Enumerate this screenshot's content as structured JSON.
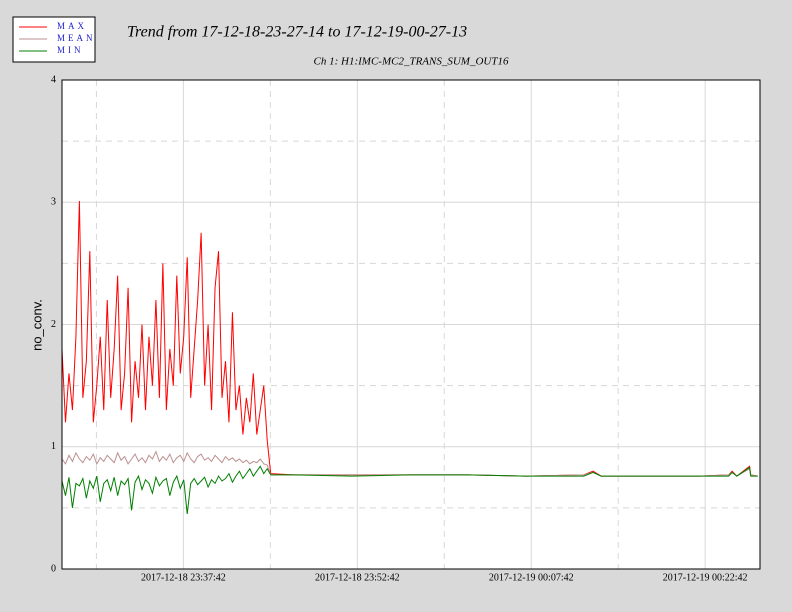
{
  "chart_data": {
    "type": "line",
    "title": "Trend from 17-12-18-23-27-14 to 17-12-19-00-27-13",
    "subtitle": "Ch 1: H1:IMC-MC2_TRANS_SUM_OUT16",
    "y_label": "no_conv.",
    "xlim": [
      0,
      60.2
    ],
    "ylim": [
      0,
      4
    ],
    "xticks": [
      {
        "value": 10.47,
        "label": "2017-12-18 23:37:42"
      },
      {
        "value": 25.47,
        "label": "2017-12-18 23:52:42"
      },
      {
        "value": 40.47,
        "label": "2017-12-19 00:07:42"
      },
      {
        "value": 55.47,
        "label": "2017-12-19 00:22:42"
      }
    ],
    "xminor": [
      2.97,
      17.97,
      32.97,
      47.97
    ],
    "yticks": [
      0,
      1,
      2,
      3,
      4
    ],
    "yminor": [
      0.5,
      1.5,
      2.5,
      3.5
    ],
    "grid": true,
    "legend": "top-left",
    "x": [
      0.0,
      0.3,
      0.6,
      0.9,
      1.2,
      1.5,
      1.8,
      2.1,
      2.4,
      2.7,
      3.0,
      3.3,
      3.6,
      3.9,
      4.2,
      4.5,
      4.8,
      5.1,
      5.4,
      5.7,
      6.0,
      6.3,
      6.6,
      6.9,
      7.2,
      7.5,
      7.8,
      8.1,
      8.4,
      8.7,
      9.0,
      9.3,
      9.6,
      9.9,
      10.2,
      10.5,
      10.8,
      11.1,
      11.4,
      11.7,
      12.0,
      12.3,
      12.6,
      12.9,
      13.2,
      13.5,
      13.8,
      14.1,
      14.4,
      14.7,
      15.0,
      15.3,
      15.6,
      15.9,
      16.2,
      16.5,
      16.8,
      17.1,
      17.4,
      17.7,
      18,
      20,
      25,
      30,
      35,
      40,
      45,
      45.8,
      46.5,
      50,
      55,
      57.5,
      57.8,
      58.2,
      59.3,
      59.4,
      60
    ],
    "series": [
      {
        "name": "MAX",
        "color": "#ff0000",
        "values": [
          1.8,
          1.2,
          1.6,
          1.3,
          1.9,
          3.01,
          1.4,
          1.7,
          2.6,
          1.2,
          1.5,
          1.9,
          1.3,
          2.2,
          1.4,
          1.8,
          2.4,
          1.3,
          1.6,
          2.3,
          1.2,
          1.7,
          1.4,
          2.0,
          1.3,
          1.9,
          1.5,
          2.2,
          1.4,
          2.5,
          1.3,
          1.8,
          1.5,
          2.4,
          1.6,
          1.9,
          2.55,
          1.4,
          1.8,
          2.2,
          2.75,
          1.5,
          2.0,
          1.3,
          2.3,
          2.6,
          1.4,
          1.7,
          1.2,
          2.1,
          1.3,
          1.5,
          1.1,
          1.4,
          1.2,
          1.6,
          1.1,
          1.3,
          1.5,
          1.05,
          0.78,
          0.77,
          0.77,
          0.77,
          0.77,
          0.76,
          0.77,
          0.8,
          0.76,
          0.76,
          0.76,
          0.77,
          0.8,
          0.76,
          0.84,
          0.77,
          0.76
        ]
      },
      {
        "name": "MEAN",
        "color": "#bc8f8f",
        "values": [
          0.9,
          0.86,
          0.93,
          0.88,
          0.95,
          0.9,
          0.87,
          0.92,
          0.89,
          0.94,
          0.86,
          0.91,
          0.88,
          0.93,
          0.9,
          0.87,
          0.95,
          0.89,
          0.92,
          0.86,
          0.9,
          0.94,
          0.88,
          0.91,
          0.87,
          0.93,
          0.9,
          0.96,
          0.88,
          0.92,
          0.89,
          0.94,
          0.87,
          0.91,
          0.93,
          0.88,
          0.95,
          0.9,
          0.87,
          0.92,
          0.94,
          0.89,
          0.91,
          0.88,
          0.93,
          0.9,
          0.87,
          0.92,
          0.89,
          0.91,
          0.88,
          0.9,
          0.87,
          0.89,
          0.86,
          0.88,
          0.87,
          0.9,
          0.86,
          0.85,
          0.77,
          0.77,
          0.77,
          0.77,
          0.77,
          0.76,
          0.77,
          0.79,
          0.76,
          0.76,
          0.76,
          0.77,
          0.79,
          0.76,
          0.82,
          0.77,
          0.76
        ]
      },
      {
        "name": "MIN",
        "color": "#008000",
        "values": [
          0.72,
          0.6,
          0.75,
          0.5,
          0.7,
          0.68,
          0.74,
          0.58,
          0.72,
          0.66,
          0.76,
          0.55,
          0.7,
          0.73,
          0.64,
          0.75,
          0.6,
          0.72,
          0.69,
          0.74,
          0.48,
          0.71,
          0.76,
          0.65,
          0.73,
          0.7,
          0.62,
          0.75,
          0.68,
          0.72,
          0.74,
          0.6,
          0.71,
          0.76,
          0.66,
          0.73,
          0.45,
          0.7,
          0.74,
          0.69,
          0.72,
          0.75,
          0.67,
          0.73,
          0.7,
          0.76,
          0.72,
          0.74,
          0.78,
          0.71,
          0.76,
          0.8,
          0.74,
          0.78,
          0.82,
          0.76,
          0.8,
          0.84,
          0.78,
          0.82,
          0.77,
          0.77,
          0.76,
          0.77,
          0.77,
          0.76,
          0.76,
          0.79,
          0.76,
          0.76,
          0.76,
          0.76,
          0.79,
          0.76,
          0.83,
          0.76,
          0.76
        ]
      }
    ]
  }
}
